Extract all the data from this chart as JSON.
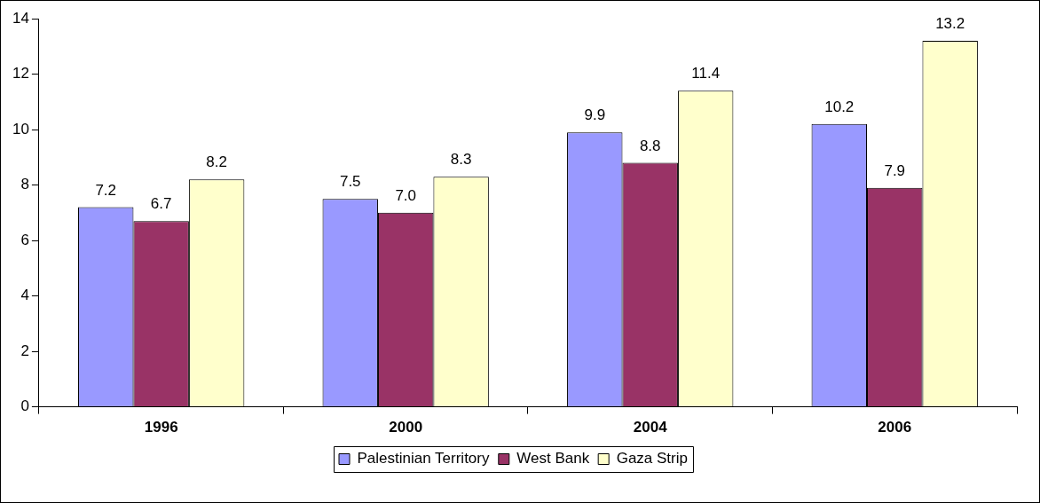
{
  "chart_data": {
    "type": "bar",
    "categories": [
      "1996",
      "2000",
      "2004",
      "2006"
    ],
    "series": [
      {
        "name": "Palestinian Territory",
        "color": "#9999ff",
        "values": [
          7.2,
          7.5,
          9.9,
          10.2
        ],
        "value_labels": [
          "7.2",
          "7.5",
          "9.9",
          "10.2"
        ]
      },
      {
        "name": "West Bank",
        "color": "#993366",
        "values": [
          6.7,
          7.0,
          8.8,
          7.9
        ],
        "value_labels": [
          "6.7",
          "7.0",
          "8.8",
          "7.9"
        ]
      },
      {
        "name": "Gaza Strip",
        "color": "#ffffcc",
        "values": [
          8.2,
          8.3,
          11.4,
          13.2
        ],
        "value_labels": [
          "8.2",
          "8.3",
          "11.4",
          "13.2"
        ]
      }
    ],
    "ylim": [
      0,
      14
    ],
    "yticks": [
      0,
      2,
      4,
      6,
      8,
      10,
      12,
      14
    ],
    "grid": false,
    "legend": "bottom"
  }
}
